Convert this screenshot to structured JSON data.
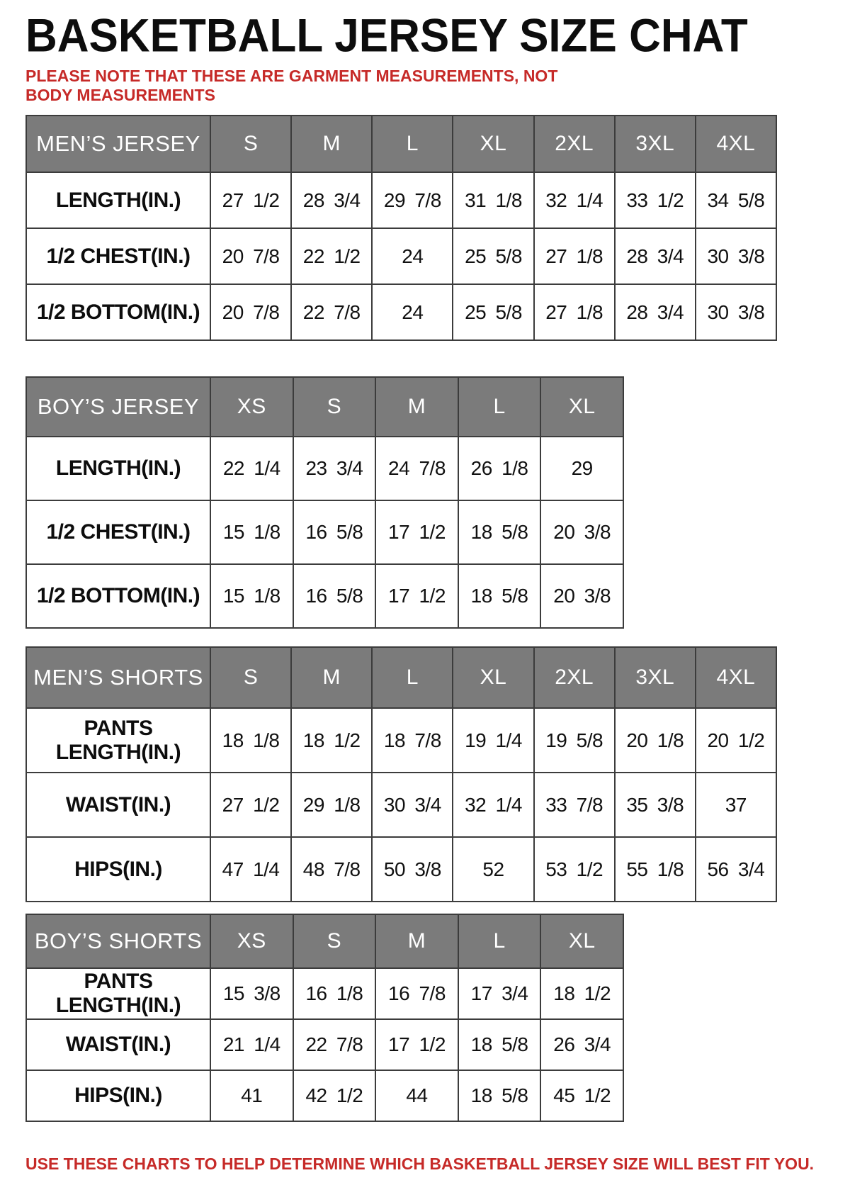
{
  "page": {
    "title": "BASKETBALL JERSEY SIZE CHAT",
    "note": "PLEASE NOTE THAT THESE ARE GARMENT MEASUREMENTS, NOT BODY MEASUREMENTS",
    "footer": "USE THESE CHARTS TO HELP DETERMINE WHICH BASKETBALL JERSEY SIZE WILL BEST FIT YOU.",
    "accent_red": "#c62a28",
    "header_gray": "#7b7b7b"
  },
  "tables": {
    "mens_jersey": {
      "title": "MEN’S JERSEY",
      "sizes": [
        "S",
        "M",
        "L",
        "XL",
        "2XL",
        "3XL",
        "4XL"
      ],
      "rows": [
        {
          "label": "LENGTH(IN.)",
          "values": [
            "27 1/2",
            "28 3/4",
            "29 7/8",
            "31 1/8",
            "32 1/4",
            "33 1/2",
            "34 5/8"
          ]
        },
        {
          "label": "1/2 CHEST(IN.)",
          "values": [
            "20 7/8",
            "22 1/2",
            "24",
            "25 5/8",
            "27 1/8",
            "28 3/4",
            "30 3/8"
          ]
        },
        {
          "label": "1/2 BOTTOM(IN.)",
          "values": [
            "20 7/8",
            "22 7/8",
            "24",
            "25 5/8",
            "27 1/8",
            "28 3/4",
            "30 3/8"
          ]
        }
      ]
    },
    "boys_jersey": {
      "title": "BOY’S JERSEY",
      "sizes": [
        "XS",
        "S",
        "M",
        "L",
        "XL"
      ],
      "rows": [
        {
          "label": "LENGTH(IN.)",
          "values": [
            "22 1/4",
            "23 3/4",
            "24 7/8",
            "26 1/8",
            "29"
          ]
        },
        {
          "label": "1/2 CHEST(IN.)",
          "values": [
            "15 1/8",
            "16 5/8",
            "17 1/2",
            "18 5/8",
            "20 3/8"
          ]
        },
        {
          "label": "1/2 BOTTOM(IN.)",
          "values": [
            "15 1/8",
            "16 5/8",
            "17 1/2",
            "18 5/8",
            "20 3/8"
          ]
        }
      ]
    },
    "mens_shorts": {
      "title": "MEN’S SHORTS",
      "sizes": [
        "S",
        "M",
        "L",
        "XL",
        "2XL",
        "3XL",
        "4XL"
      ],
      "rows": [
        {
          "label": "PANTS LENGTH(IN.)",
          "values": [
            "18 1/8",
            "18 1/2",
            "18 7/8",
            "19 1/4",
            "19 5/8",
            "20 1/8",
            "20 1/2"
          ]
        },
        {
          "label": "WAIST(IN.)",
          "values": [
            "27 1/2",
            "29 1/8",
            "30 3/4",
            "32 1/4",
            "33 7/8",
            "35 3/8",
            "37"
          ]
        },
        {
          "label": "HIPS(IN.)",
          "values": [
            "47 1/4",
            "48 7/8",
            "50 3/8",
            "52",
            "53 1/2",
            "55 1/8",
            "56 3/4"
          ]
        }
      ]
    },
    "boys_shorts": {
      "title": "BOY’S SHORTS",
      "sizes": [
        "XS",
        "S",
        "M",
        "L",
        "XL"
      ],
      "rows": [
        {
          "label": "PANTS LENGTH(IN.)",
          "values": [
            "15 3/8",
            "16 1/8",
            "16 7/8",
            "17 3/4",
            "18 1/2"
          ]
        },
        {
          "label": "WAIST(IN.)",
          "values": [
            "21 1/4",
            "22 7/8",
            "17 1/2",
            "18 5/8",
            "26 3/4"
          ]
        },
        {
          "label": "HIPS(IN.)",
          "values": [
            "41",
            "42 1/2",
            "44",
            "18 5/8",
            "45 1/2"
          ]
        }
      ]
    }
  },
  "chart_data": [
    {
      "type": "table",
      "title": "MEN’S JERSEY",
      "columns": [
        "S",
        "M",
        "L",
        "XL",
        "2XL",
        "3XL",
        "4XL"
      ],
      "rows": {
        "LENGTH(IN.)": [
          "27 1/2",
          "28 3/4",
          "29 7/8",
          "31 1/8",
          "32 1/4",
          "33 1/2",
          "34 5/8"
        ],
        "1/2 CHEST(IN.)": [
          "20 7/8",
          "22 1/2",
          "24",
          "25 5/8",
          "27 1/8",
          "28 3/4",
          "30 3/8"
        ],
        "1/2 BOTTOM(IN.)": [
          "20 7/8",
          "22 7/8",
          "24",
          "25 5/8",
          "27 1/8",
          "28 3/4",
          "30 3/8"
        ]
      }
    },
    {
      "type": "table",
      "title": "BOY’S JERSEY",
      "columns": [
        "XS",
        "S",
        "M",
        "L",
        "XL"
      ],
      "rows": {
        "LENGTH(IN.)": [
          "22 1/4",
          "23 3/4",
          "24 7/8",
          "26 1/8",
          "29"
        ],
        "1/2 CHEST(IN.)": [
          "15 1/8",
          "16 5/8",
          "17 1/2",
          "18 5/8",
          "20 3/8"
        ],
        "1/2 BOTTOM(IN.)": [
          "15 1/8",
          "16 5/8",
          "17 1/2",
          "18 5/8",
          "20 3/8"
        ]
      }
    },
    {
      "type": "table",
      "title": "MEN’S SHORTS",
      "columns": [
        "S",
        "M",
        "L",
        "XL",
        "2XL",
        "3XL",
        "4XL"
      ],
      "rows": {
        "PANTS LENGTH(IN.)": [
          "18 1/8",
          "18 1/2",
          "18 7/8",
          "19 1/4",
          "19 5/8",
          "20 1/8",
          "20 1/2"
        ],
        "WAIST(IN.)": [
          "27 1/2",
          "29 1/8",
          "30 3/4",
          "32 1/4",
          "33 7/8",
          "35 3/8",
          "37"
        ],
        "HIPS(IN.)": [
          "47 1/4",
          "48 7/8",
          "50 3/8",
          "52",
          "53 1/2",
          "55 1/8",
          "56 3/4"
        ]
      }
    },
    {
      "type": "table",
      "title": "BOY’S SHORTS",
      "columns": [
        "XS",
        "S",
        "M",
        "L",
        "XL"
      ],
      "rows": {
        "PANTS LENGTH(IN.)": [
          "15 3/8",
          "16 1/8",
          "16 7/8",
          "17 3/4",
          "18 1/2"
        ],
        "WAIST(IN.)": [
          "21 1/4",
          "22 7/8",
          "17 1/2",
          "18 5/8",
          "26 3/4"
        ],
        "HIPS(IN.)": [
          "41",
          "42 1/2",
          "44",
          "18 5/8",
          "45 1/2"
        ]
      }
    }
  ]
}
